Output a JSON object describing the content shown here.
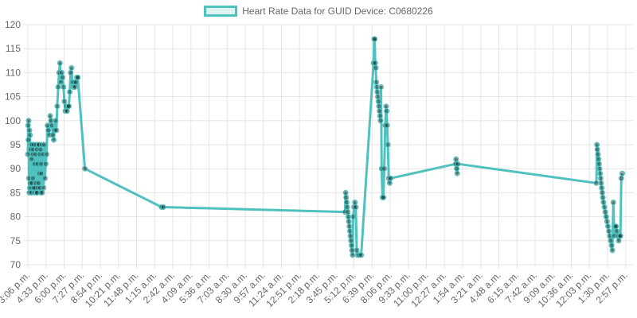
{
  "legend": {
    "label": "Heart Rate Data for GUID Device: C0680226"
  },
  "colors": {
    "series": "#4fc1be",
    "grid": "#e5e5e5",
    "point_fill": "#000000"
  },
  "chart_data": {
    "type": "line",
    "title": "",
    "xlabel": "",
    "ylabel": "",
    "ylim": [
      70,
      120
    ],
    "yticks": [
      70,
      75,
      80,
      85,
      90,
      95,
      100,
      105,
      110,
      115,
      120
    ],
    "grid": true,
    "legend_position": "top-center",
    "x_tick_labels": [
      "3:06 p.m.",
      "4:33 p.m.",
      "6:00 p.m.",
      "7:27 p.m.",
      "8:54 p.m.",
      "10:21 p.m.",
      "11:48 p.m.",
      "1:15 a.m.",
      "2:42 a.m.",
      "4:09 a.m.",
      "5:36 a.m.",
      "7:03 a.m.",
      "8:30 a.m.",
      "9:57 a.m.",
      "11:24 a.m.",
      "12:51 p.m.",
      "2:18 p.m.",
      "3:45 p.m.",
      "5:12 p.m.",
      "6:39 p.m.",
      "8:06 p.m.",
      "9:33 p.m.",
      "11:00 p.m.",
      "12:27 a.m.",
      "1:54 a.m.",
      "3:21 a.m.",
      "4:48 a.m.",
      "6:15 a.m.",
      "7:42 a.m.",
      "9:09 a.m.",
      "10:36 a.m.",
      "12:03 p.m.",
      "1:30 p.m.",
      "2:57 p.m."
    ],
    "series": [
      {
        "name": "Heart Rate Data for GUID Device: C0680226",
        "x_tick_positions": [
          0,
          0.1,
          0.2,
          0.3,
          0.4,
          0.5,
          0.6,
          0.7,
          0.8,
          0.9,
          1.0,
          1.1,
          1.2,
          1.3,
          1.4,
          1.5,
          1.6,
          1.7,
          1.8,
          1.9,
          2.0,
          2.1,
          2.2,
          2.3,
          2.4,
          2.5,
          2.6,
          2.7,
          2.8,
          2.9,
          3.0,
          3.1,
          3.2,
          3.3,
          3.35,
          3.4,
          3.45,
          3.5,
          3.55,
          3.6,
          3.65,
          3.7,
          3.75,
          3.8,
          3.85,
          3.9,
          3.95,
          4.0,
          4.05,
          4.1,
          4.2,
          4.3,
          4.4,
          4.5,
          4.6,
          4.7,
          4.8,
          4.9,
          5.0,
          5.1,
          5.2,
          5.3,
          5.4,
          5.5,
          5.6,
          5.7,
          5.8,
          5.9,
          6.0,
          6.1,
          6.2,
          6.3,
          6.4,
          6.5,
          6.6,
          6.7,
          6.8,
          6.9,
          7.0,
          7.1,
          7.2,
          7.3,
          7.4,
          7.5,
          7.6,
          7.7,
          7.8,
          7.9,
          8.0,
          8.2,
          8.5,
          8.8,
          9.1,
          9.4,
          9.7,
          10.0,
          10.3,
          10.6,
          10.9,
          11.2,
          11.5,
          11.8,
          12.1,
          12.4,
          12.7,
          13.0,
          13.5,
          14.0,
          14.5,
          15.0,
          15.5,
          16.0,
          16.5,
          17.0,
          17.5,
          18.0,
          18.5,
          19.0,
          20.0,
          23.0,
          29.0,
          34.0,
          42.0,
          48.0,
          54.0,
          60.0,
          71.0,
          108.0,
          180.0,
          188.0,
          188.2,
          188.4,
          188.6,
          188.8,
          189.0,
          189.2,
          189.4,
          189.6,
          189.8,
          190.0,
          190.2,
          190.4,
          190.6,
          190.8,
          191.0,
          191.2,
          191.4,
          192.0,
          193.0,
          194.0,
          195.0,
          196.5,
          198.0,
          199.5,
          200.0,
          200.2,
          200.4,
          200.6,
          200.8,
          201.0,
          201.2,
          201.4,
          201.6,
          201.8,
          202.0,
          202.2,
          202.4,
          202.6,
          202.8,
          203.0,
          203.2,
          203.4,
          203.6,
          203.8,
          204.0,
          204.5,
          205.0,
          206.0,
          207.0,
          208.0,
          209.0,
          210.0,
          211.0,
          212.0,
          240.0,
          241.0,
          242.0,
          243.0,
          320.0,
          321.0,
          322.0,
          323.0,
          324.0,
          325.0,
          326.0,
          327.0,
          328.0,
          329.0,
          330.0,
          331.0,
          332.0,
          333.0,
          334.0,
          335.0,
          336.0,
          337.0,
          338.0,
          339.0,
          340.0,
          341.0,
          342.0,
          343.0,
          344.0,
          345.0,
          346.0,
          347.0,
          348.0
        ]
      }
    ],
    "points": [
      {
        "t": 0.0,
        "v": 93
      },
      {
        "t": 0.15,
        "v": 99
      },
      {
        "t": 0.3,
        "v": 96
      },
      {
        "t": 0.45,
        "v": 100
      },
      {
        "t": 0.6,
        "v": 88
      },
      {
        "t": 0.75,
        "v": 85
      },
      {
        "t": 0.9,
        "v": 98
      },
      {
        "t": 1.05,
        "v": 86
      },
      {
        "t": 1.2,
        "v": 97
      },
      {
        "t": 1.35,
        "v": 87
      },
      {
        "t": 1.5,
        "v": 94
      },
      {
        "t": 1.65,
        "v": 86
      },
      {
        "t": 1.8,
        "v": 95
      },
      {
        "t": 1.95,
        "v": 85
      },
      {
        "t": 2.1,
        "v": 92
      },
      {
        "t": 2.25,
        "v": 87
      },
      {
        "t": 2.4,
        "v": 95
      },
      {
        "t": 2.55,
        "v": 86
      },
      {
        "t": 2.7,
        "v": 93
      },
      {
        "t": 2.85,
        "v": 88
      },
      {
        "t": 3.0,
        "v": 94
      },
      {
        "t": 3.2,
        "v": 86
      },
      {
        "t": 3.4,
        "v": 95
      },
      {
        "t": 3.6,
        "v": 85
      },
      {
        "t": 3.8,
        "v": 91
      },
      {
        "t": 4.0,
        "v": 86
      },
      {
        "t": 4.2,
        "v": 93
      },
      {
        "t": 4.4,
        "v": 87
      },
      {
        "t": 4.6,
        "v": 95
      },
      {
        "t": 4.8,
        "v": 85
      },
      {
        "t": 5.0,
        "v": 94
      },
      {
        "t": 5.2,
        "v": 85
      },
      {
        "t": 5.4,
        "v": 91
      },
      {
        "t": 5.6,
        "v": 86
      },
      {
        "t": 5.8,
        "v": 95
      },
      {
        "t": 6.0,
        "v": 87
      },
      {
        "t": 6.2,
        "v": 95
      },
      {
        "t": 6.4,
        "v": 89
      },
      {
        "t": 6.6,
        "v": 93
      },
      {
        "t": 6.8,
        "v": 86
      },
      {
        "t": 7.0,
        "v": 94
      },
      {
        "t": 7.2,
        "v": 85
      },
      {
        "t": 7.4,
        "v": 91
      },
      {
        "t": 7.6,
        "v": 89
      },
      {
        "t": 7.8,
        "v": 95
      },
      {
        "t": 8.0,
        "v": 85
      },
      {
        "t": 8.4,
        "v": 93
      },
      {
        "t": 8.8,
        "v": 86
      },
      {
        "t": 9.2,
        "v": 95
      },
      {
        "t": 9.6,
        "v": 88
      },
      {
        "t": 10.0,
        "v": 91
      },
      {
        "t": 10.5,
        "v": 93
      },
      {
        "t": 11.0,
        "v": 99
      },
      {
        "t": 11.5,
        "v": 98
      },
      {
        "t": 12.0,
        "v": 97
      },
      {
        "t": 12.5,
        "v": 101
      },
      {
        "t": 13.0,
        "v": 100
      },
      {
        "t": 13.5,
        "v": 99
      },
      {
        "t": 14.0,
        "v": 97
      },
      {
        "t": 14.5,
        "v": 96
      },
      {
        "t": 15.0,
        "v": 98
      },
      {
        "t": 15.5,
        "v": 100
      },
      {
        "t": 16.0,
        "v": 98
      },
      {
        "t": 16.5,
        "v": 103
      },
      {
        "t": 17.0,
        "v": 107
      },
      {
        "t": 17.5,
        "v": 110
      },
      {
        "t": 18.0,
        "v": 112
      },
      {
        "t": 18.5,
        "v": 108
      },
      {
        "t": 19.0,
        "v": 110
      },
      {
        "t": 19.5,
        "v": 109
      },
      {
        "t": 20.0,
        "v": 107
      },
      {
        "t": 20.5,
        "v": 104
      },
      {
        "t": 21.0,
        "v": 102
      },
      {
        "t": 21.5,
        "v": 103
      },
      {
        "t": 22.0,
        "v": 102
      },
      {
        "t": 22.5,
        "v": 103
      },
      {
        "t": 23.0,
        "v": 103
      },
      {
        "t": 23.5,
        "v": 106
      },
      {
        "t": 24.0,
        "v": 110
      },
      {
        "t": 24.5,
        "v": 111
      },
      {
        "t": 25.0,
        "v": 108
      },
      {
        "t": 25.5,
        "v": 107
      },
      {
        "t": 26.0,
        "v": 108
      },
      {
        "t": 26.5,
        "v": 107
      },
      {
        "t": 27.0,
        "v": 108
      },
      {
        "t": 27.5,
        "v": 109
      },
      {
        "t": 28.0,
        "v": 109
      },
      {
        "t": 32.0,
        "v": 90
      },
      {
        "t": 75.0,
        "v": 82
      },
      {
        "t": 76.0,
        "v": 82
      },
      {
        "t": 178.0,
        "v": 81
      },
      {
        "t": 178.3,
        "v": 85
      },
      {
        "t": 178.6,
        "v": 84
      },
      {
        "t": 178.9,
        "v": 83
      },
      {
        "t": 179.2,
        "v": 82
      },
      {
        "t": 179.5,
        "v": 81
      },
      {
        "t": 179.8,
        "v": 80
      },
      {
        "t": 180.1,
        "v": 79
      },
      {
        "t": 180.4,
        "v": 78
      },
      {
        "t": 180.7,
        "v": 77
      },
      {
        "t": 181.0,
        "v": 76
      },
      {
        "t": 181.3,
        "v": 75
      },
      {
        "t": 181.6,
        "v": 74
      },
      {
        "t": 181.9,
        "v": 73
      },
      {
        "t": 182.2,
        "v": 72
      },
      {
        "t": 182.5,
        "v": 80
      },
      {
        "t": 183.0,
        "v": 82
      },
      {
        "t": 183.5,
        "v": 83
      },
      {
        "t": 184.0,
        "v": 82
      },
      {
        "t": 184.5,
        "v": 73
      },
      {
        "t": 185.0,
        "v": 72
      },
      {
        "t": 186.0,
        "v": 72
      },
      {
        "t": 187.0,
        "v": 72
      },
      {
        "t": 194.0,
        "v": 112
      },
      {
        "t": 194.3,
        "v": 117
      },
      {
        "t": 194.6,
        "v": 117
      },
      {
        "t": 194.9,
        "v": 112
      },
      {
        "t": 195.2,
        "v": 111
      },
      {
        "t": 195.5,
        "v": 108
      },
      {
        "t": 195.8,
        "v": 107
      },
      {
        "t": 196.1,
        "v": 106
      },
      {
        "t": 196.4,
        "v": 105
      },
      {
        "t": 196.7,
        "v": 104
      },
      {
        "t": 197.0,
        "v": 103
      },
      {
        "t": 197.3,
        "v": 102
      },
      {
        "t": 197.6,
        "v": 101
      },
      {
        "t": 197.9,
        "v": 100
      },
      {
        "t": 198.2,
        "v": 107
      },
      {
        "t": 198.5,
        "v": 90
      },
      {
        "t": 199.0,
        "v": 84
      },
      {
        "t": 199.5,
        "v": 84
      },
      {
        "t": 200.0,
        "v": 90
      },
      {
        "t": 200.5,
        "v": 99
      },
      {
        "t": 201.0,
        "v": 103
      },
      {
        "t": 201.3,
        "v": 102
      },
      {
        "t": 201.6,
        "v": 99
      },
      {
        "t": 202.0,
        "v": 95
      },
      {
        "t": 202.5,
        "v": 88
      },
      {
        "t": 203.0,
        "v": 87
      },
      {
        "t": 203.5,
        "v": 88
      },
      {
        "t": 240.0,
        "v": 91
      },
      {
        "t": 240.3,
        "v": 92
      },
      {
        "t": 240.6,
        "v": 90
      },
      {
        "t": 240.9,
        "v": 89
      },
      {
        "t": 241.2,
        "v": 91
      },
      {
        "t": 319.0,
        "v": 87
      },
      {
        "t": 319.3,
        "v": 95
      },
      {
        "t": 319.6,
        "v": 94
      },
      {
        "t": 319.9,
        "v": 93
      },
      {
        "t": 320.2,
        "v": 92
      },
      {
        "t": 320.5,
        "v": 91
      },
      {
        "t": 320.8,
        "v": 90
      },
      {
        "t": 321.1,
        "v": 89
      },
      {
        "t": 321.4,
        "v": 88
      },
      {
        "t": 321.7,
        "v": 87
      },
      {
        "t": 322.0,
        "v": 86
      },
      {
        "t": 322.3,
        "v": 85
      },
      {
        "t": 322.6,
        "v": 84
      },
      {
        "t": 323.0,
        "v": 83
      },
      {
        "t": 323.5,
        "v": 82
      },
      {
        "t": 324.0,
        "v": 81
      },
      {
        "t": 324.5,
        "v": 80
      },
      {
        "t": 325.0,
        "v": 79
      },
      {
        "t": 325.5,
        "v": 78
      },
      {
        "t": 326.0,
        "v": 77
      },
      {
        "t": 326.5,
        "v": 76
      },
      {
        "t": 327.0,
        "v": 75
      },
      {
        "t": 327.5,
        "v": 74
      },
      {
        "t": 328.0,
        "v": 73
      },
      {
        "t": 328.5,
        "v": 83
      },
      {
        "t": 329.0,
        "v": 76
      },
      {
        "t": 329.5,
        "v": 78
      },
      {
        "t": 330.0,
        "v": 78
      },
      {
        "t": 330.5,
        "v": 77
      },
      {
        "t": 331.0,
        "v": 76
      },
      {
        "t": 331.5,
        "v": 75
      },
      {
        "t": 332.0,
        "v": 76
      },
      {
        "t": 332.5,
        "v": 76
      },
      {
        "t": 333.0,
        "v": 88
      },
      {
        "t": 333.5,
        "v": 89
      }
    ]
  }
}
